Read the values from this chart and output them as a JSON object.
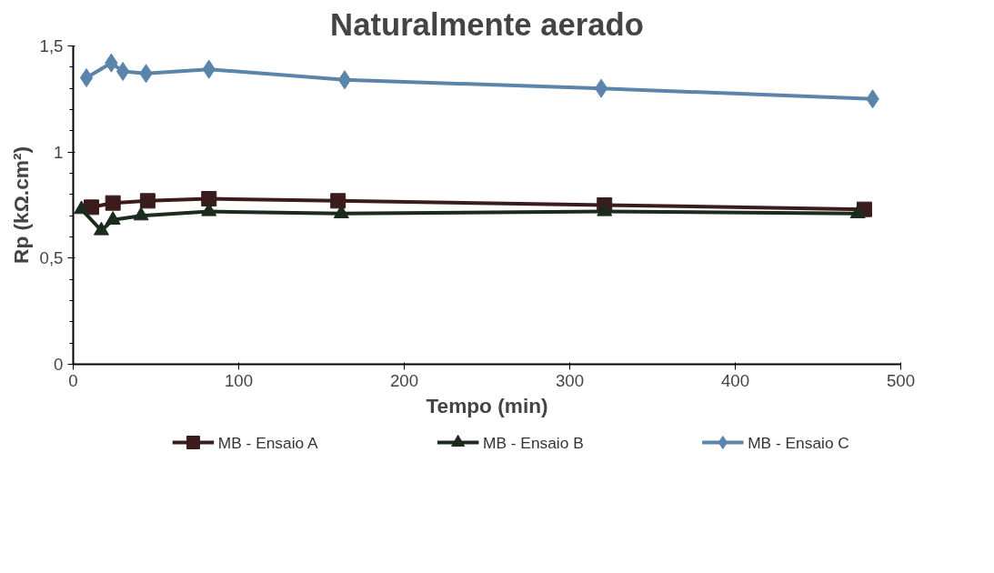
{
  "chart_data": {
    "type": "line",
    "title": "Naturalmente aerado",
    "xlabel": "Tempo (min)",
    "ylabel": "Rp (kΩ.cm²)",
    "xlim": [
      0,
      500
    ],
    "xticks": [
      0,
      100,
      200,
      300,
      400,
      500
    ],
    "ylim": [
      0,
      1.5
    ],
    "yticks": [
      {
        "value": 0,
        "label": "0"
      },
      {
        "value": 0.5,
        "label": "0,5"
      },
      {
        "value": 1,
        "label": "1"
      },
      {
        "value": 1.5,
        "label": "1,5"
      }
    ],
    "grid": false,
    "legend": "bottom",
    "series": [
      {
        "name": "MB - Ensaio A",
        "color": "#3b1c1c",
        "marker": "square",
        "x": [
          11,
          24,
          45,
          82,
          160,
          321,
          478
        ],
        "values": [
          0.74,
          0.76,
          0.77,
          0.78,
          0.77,
          0.75,
          0.73
        ]
      },
      {
        "name": "MB - Ensaio B",
        "color": "#1c2b1c",
        "marker": "triangle",
        "x": [
          5,
          17,
          24,
          41,
          82,
          162,
          321,
          474
        ],
        "values": [
          0.73,
          0.63,
          0.68,
          0.7,
          0.72,
          0.71,
          0.72,
          0.71
        ]
      },
      {
        "name": "MB - Ensaio C",
        "color": "#5b84ab",
        "marker": "diamond",
        "x": [
          8,
          23,
          30,
          44,
          82,
          164,
          319,
          483
        ],
        "values": [
          1.35,
          1.42,
          1.38,
          1.37,
          1.39,
          1.34,
          1.3,
          1.25
        ]
      }
    ]
  }
}
